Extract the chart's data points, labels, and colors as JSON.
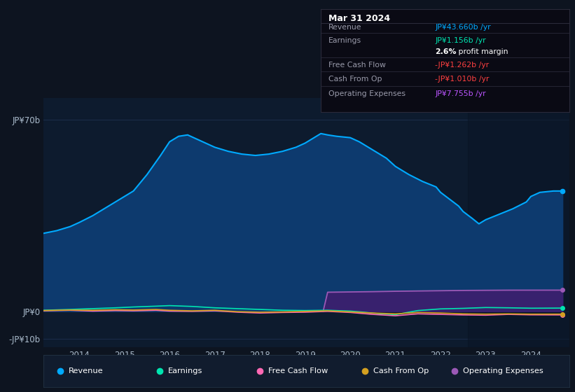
{
  "background_color": "#0d1420",
  "plot_bg_color": "#0d1b2e",
  "ylim": [
    -13,
    78
  ],
  "xlim": [
    2013.2,
    2024.85
  ],
  "x_ticks": [
    2014,
    2015,
    2016,
    2017,
    2018,
    2019,
    2020,
    2021,
    2022,
    2023,
    2024
  ],
  "ylabel_top": "JP¥70b",
  "ylabel_zero": "JP¥0",
  "ylabel_neg": "-JP¥10b",
  "ytick_vals": [
    70,
    0,
    -10
  ],
  "revenue_color": "#00aaff",
  "earnings_color": "#00e5b0",
  "fcf_color": "#ff69b4",
  "cashfromop_color": "#d4a020",
  "opex_color": "#9b59b6",
  "revenue_fill_color": "#0d3a6e",
  "opex_fill_color": "#3d1f6e",
  "grid_color": "#1e3050",
  "right_shade_color": "#0a1525",
  "info_box_bg": "#0a0a14",
  "info_box_border": "#2a2a3a",
  "info_box_title": "Mar 31 2024",
  "info_rows": [
    {
      "label": "Revenue",
      "value": "JP¥43.660b /yr",
      "vcolor": "#00aaff",
      "sep": true
    },
    {
      "label": "Earnings",
      "value": "JP¥1.156b /yr",
      "vcolor": "#00e5b0",
      "sep": true
    },
    {
      "label": "",
      "value": "2.6% profit margin",
      "vcolor": "#ffffff",
      "sep": false,
      "bold_pct": true
    },
    {
      "label": "Free Cash Flow",
      "value": "-JP¥1.262b /yr",
      "vcolor": "#ff4040",
      "sep": true
    },
    {
      "label": "Cash From Op",
      "value": "-JP¥1.010b /yr",
      "vcolor": "#ff4040",
      "sep": true
    },
    {
      "label": "Operating Expenses",
      "value": "JP¥7.755b /yr",
      "vcolor": "#bb55ff",
      "sep": true
    }
  ],
  "legend": [
    {
      "label": "Revenue",
      "color": "#00aaff"
    },
    {
      "label": "Earnings",
      "color": "#00e5b0"
    },
    {
      "label": "Free Cash Flow",
      "color": "#ff69b4"
    },
    {
      "label": "Cash From Op",
      "color": "#d4a020"
    },
    {
      "label": "Operating Expenses",
      "color": "#9b59b6"
    }
  ],
  "revenue": [
    [
      2013.2,
      28.5
    ],
    [
      2013.5,
      29.5
    ],
    [
      2013.8,
      31.0
    ],
    [
      2014.0,
      32.5
    ],
    [
      2014.3,
      35.0
    ],
    [
      2014.6,
      38.0
    ],
    [
      2014.9,
      41.0
    ],
    [
      2015.2,
      44.0
    ],
    [
      2015.5,
      50.0
    ],
    [
      2015.8,
      57.0
    ],
    [
      2016.0,
      62.0
    ],
    [
      2016.2,
      64.0
    ],
    [
      2016.4,
      64.5
    ],
    [
      2016.6,
      63.0
    ],
    [
      2016.8,
      61.5
    ],
    [
      2017.0,
      60.0
    ],
    [
      2017.3,
      58.5
    ],
    [
      2017.6,
      57.5
    ],
    [
      2017.9,
      57.0
    ],
    [
      2018.2,
      57.5
    ],
    [
      2018.5,
      58.5
    ],
    [
      2018.8,
      60.0
    ],
    [
      2019.0,
      61.5
    ],
    [
      2019.2,
      63.5
    ],
    [
      2019.35,
      65.0
    ],
    [
      2019.5,
      64.5
    ],
    [
      2019.7,
      64.0
    ],
    [
      2020.0,
      63.5
    ],
    [
      2020.2,
      62.0
    ],
    [
      2020.5,
      59.0
    ],
    [
      2020.8,
      56.0
    ],
    [
      2021.0,
      53.0
    ],
    [
      2021.3,
      50.0
    ],
    [
      2021.6,
      47.5
    ],
    [
      2021.9,
      45.5
    ],
    [
      2022.0,
      43.5
    ],
    [
      2022.2,
      41.0
    ],
    [
      2022.4,
      38.5
    ],
    [
      2022.5,
      36.5
    ],
    [
      2022.7,
      34.0
    ],
    [
      2022.85,
      32.0
    ],
    [
      2023.0,
      33.5
    ],
    [
      2023.3,
      35.5
    ],
    [
      2023.6,
      37.5
    ],
    [
      2023.9,
      40.0
    ],
    [
      2024.0,
      42.0
    ],
    [
      2024.2,
      43.5
    ],
    [
      2024.5,
      44.0
    ],
    [
      2024.7,
      44.0
    ]
  ],
  "earnings": [
    [
      2013.2,
      0.4
    ],
    [
      2013.8,
      0.7
    ],
    [
      2014.3,
      1.0
    ],
    [
      2014.8,
      1.3
    ],
    [
      2015.2,
      1.6
    ],
    [
      2015.7,
      1.9
    ],
    [
      2016.0,
      2.1
    ],
    [
      2016.5,
      1.8
    ],
    [
      2017.0,
      1.3
    ],
    [
      2017.5,
      1.0
    ],
    [
      2018.0,
      0.7
    ],
    [
      2018.5,
      0.4
    ],
    [
      2019.0,
      0.3
    ],
    [
      2019.5,
      0.4
    ],
    [
      2020.0,
      0.1
    ],
    [
      2020.3,
      -0.3
    ],
    [
      2020.6,
      -0.8
    ],
    [
      2021.0,
      -1.2
    ],
    [
      2021.5,
      0.3
    ],
    [
      2022.0,
      0.9
    ],
    [
      2022.5,
      1.1
    ],
    [
      2023.0,
      1.4
    ],
    [
      2023.5,
      1.3
    ],
    [
      2024.0,
      1.156
    ],
    [
      2024.7,
      1.2
    ]
  ],
  "fcf": [
    [
      2013.2,
      0.2
    ],
    [
      2013.8,
      0.4
    ],
    [
      2014.3,
      0.1
    ],
    [
      2014.8,
      0.3
    ],
    [
      2015.2,
      0.2
    ],
    [
      2015.7,
      0.4
    ],
    [
      2016.0,
      0.1
    ],
    [
      2016.5,
      0.0
    ],
    [
      2017.0,
      0.2
    ],
    [
      2017.5,
      -0.3
    ],
    [
      2018.0,
      -0.6
    ],
    [
      2018.5,
      -0.4
    ],
    [
      2019.0,
      -0.3
    ],
    [
      2019.5,
      0.0
    ],
    [
      2020.0,
      -0.4
    ],
    [
      2020.5,
      -1.1
    ],
    [
      2021.0,
      -1.6
    ],
    [
      2021.5,
      -0.9
    ],
    [
      2022.0,
      -1.1
    ],
    [
      2022.5,
      -1.3
    ],
    [
      2023.0,
      -1.4
    ],
    [
      2023.5,
      -1.1
    ],
    [
      2024.0,
      -1.262
    ],
    [
      2024.7,
      -1.3
    ]
  ],
  "cashfromop": [
    [
      2013.2,
      0.3
    ],
    [
      2013.8,
      0.5
    ],
    [
      2014.3,
      0.4
    ],
    [
      2014.8,
      0.6
    ],
    [
      2015.2,
      0.5
    ],
    [
      2015.7,
      0.7
    ],
    [
      2016.0,
      0.4
    ],
    [
      2016.5,
      0.2
    ],
    [
      2017.0,
      0.4
    ],
    [
      2017.5,
      -0.1
    ],
    [
      2018.0,
      -0.3
    ],
    [
      2018.5,
      -0.2
    ],
    [
      2019.0,
      0.0
    ],
    [
      2019.5,
      0.2
    ],
    [
      2020.0,
      -0.2
    ],
    [
      2020.5,
      -0.6
    ],
    [
      2021.0,
      -0.9
    ],
    [
      2021.5,
      -0.4
    ],
    [
      2022.0,
      -0.6
    ],
    [
      2022.5,
      -0.9
    ],
    [
      2023.0,
      -1.0
    ],
    [
      2023.5,
      -0.9
    ],
    [
      2024.0,
      -1.01
    ],
    [
      2024.7,
      -1.0
    ]
  ],
  "opex": [
    [
      2019.4,
      0.0
    ],
    [
      2019.5,
      7.0
    ],
    [
      2020.0,
      7.1
    ],
    [
      2020.5,
      7.2
    ],
    [
      2021.0,
      7.35
    ],
    [
      2021.5,
      7.45
    ],
    [
      2022.0,
      7.55
    ],
    [
      2022.5,
      7.65
    ],
    [
      2023.0,
      7.7
    ],
    [
      2023.5,
      7.75
    ],
    [
      2024.0,
      7.755
    ],
    [
      2024.7,
      7.76
    ]
  ]
}
